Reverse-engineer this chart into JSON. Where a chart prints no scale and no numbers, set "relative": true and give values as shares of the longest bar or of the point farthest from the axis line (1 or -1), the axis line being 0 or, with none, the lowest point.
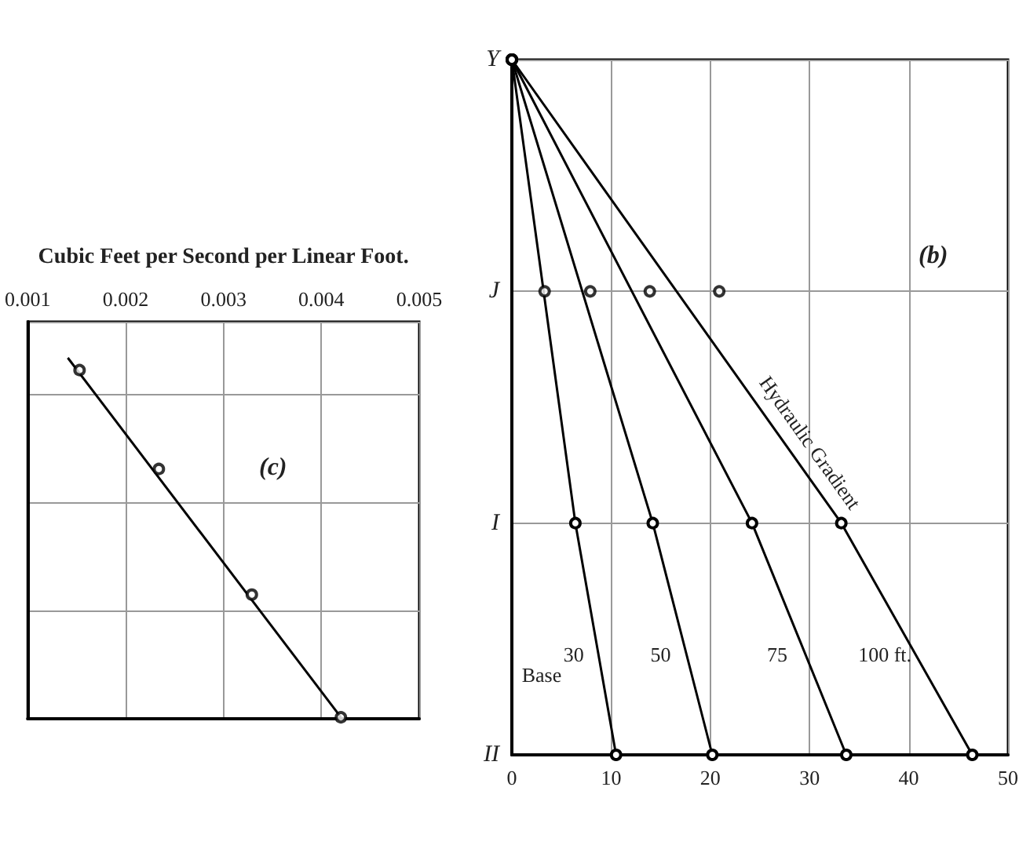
{
  "chart_data": [
    {
      "type": "scatter",
      "title": "(c)",
      "xlabel": "Cubic Feet per Second per Linear Foot.",
      "relative": true,
      "grid": true,
      "marker": "circle",
      "xlim": [
        0.001,
        0.005
      ],
      "xticks": [
        0.001,
        0.002,
        0.003,
        0.004,
        0.005
      ],
      "series": [
        {
          "color": "#000000",
          "x": [
            0.00153,
            0.00234,
            0.00329,
            0.0042
          ],
          "values": [
            0.966,
            0.692,
            0.344,
            0.004
          ]
        },
        {
          "type": "line",
          "color": "#000000",
          "marker": "none",
          "x": [
            0.00141,
            0.0042
          ],
          "values": [
            1,
            0.004
          ]
        }
      ]
    },
    {
      "type": "line",
      "orientation": "horizontal",
      "title": "(b)",
      "grid": true,
      "marker": "circle",
      "xlim": [
        0,
        50
      ],
      "xticks": [
        0,
        10,
        20,
        30,
        40,
        50
      ],
      "categories": [
        "Y",
        "J",
        "I",
        "II"
      ],
      "series": [
        {
          "name": "30",
          "color": "#000000",
          "values": [
            0,
            null,
            6.4,
            10.5
          ]
        },
        {
          "name": "50",
          "color": "#000000",
          "values": [
            0,
            null,
            14.2,
            20.2
          ]
        },
        {
          "name": "75",
          "color": "#000000",
          "values": [
            0,
            null,
            24.2,
            33.7
          ]
        },
        {
          "name": "100 ft.",
          "color": "#000000",
          "values": [
            0,
            null,
            33.2,
            46.4
          ]
        },
        {
          "type": "scatter",
          "color": "#000000",
          "x": [
            "J",
            "J",
            "J",
            "J"
          ],
          "values": [
            3.3,
            7.9,
            13.9,
            20.9
          ]
        }
      ],
      "annotations": [
        "Base",
        "Hydraulic Gradient"
      ]
    }
  ]
}
